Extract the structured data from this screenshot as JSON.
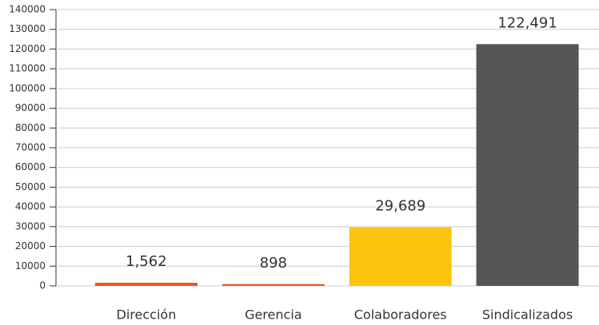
{
  "chart_data": {
    "type": "bar",
    "categories": [
      "Dirección",
      "Gerencia",
      "Colaboradores",
      "Sindicalizados"
    ],
    "values": [
      1562,
      898,
      29689,
      122491
    ],
    "value_labels": [
      "1,562",
      "898",
      "29,689",
      "122,491"
    ],
    "colors": [
      "#e05a1e",
      "#e05a1e",
      "#fcc30f",
      "#555555"
    ],
    "ylim": [
      0,
      140000
    ],
    "yticks": [
      0,
      10000,
      20000,
      30000,
      40000,
      50000,
      60000,
      70000,
      80000,
      90000,
      100000,
      110000,
      120000,
      130000,
      140000
    ],
    "grid": true
  }
}
